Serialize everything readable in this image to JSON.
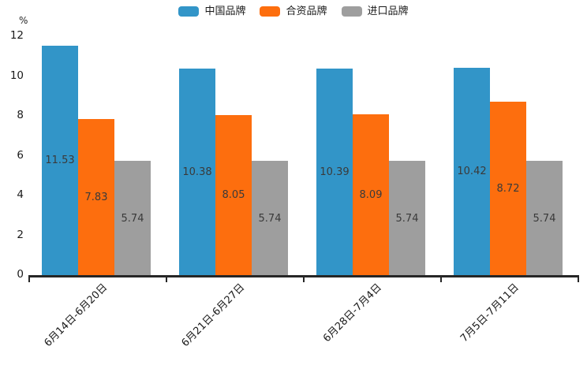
{
  "chart_data": {
    "type": "bar",
    "title": "",
    "xlabel": "",
    "ylabel": "%",
    "categories": [
      "6月14日-6月20日",
      "6月21日-6月27日",
      "6月28日-7月4日",
      "7月5日-7月11日"
    ],
    "series": [
      {
        "name": "中国品牌",
        "color": "#3295c8",
        "values": [
          11.53,
          10.38,
          10.39,
          10.42
        ]
      },
      {
        "name": "合资品牌",
        "color": "#fd6e0e",
        "values": [
          7.83,
          8.05,
          8.09,
          8.72
        ]
      },
      {
        "name": "进口品牌",
        "color": "#9e9e9e",
        "values": [
          5.74,
          5.74,
          5.74,
          5.74
        ]
      }
    ],
    "value_labels_shown": true,
    "yticks": [
      0,
      2,
      4,
      6,
      8,
      10,
      12
    ],
    "ylim": [
      0,
      12
    ],
    "grid": false,
    "legend_position": "top",
    "axis_color": "#262626"
  }
}
